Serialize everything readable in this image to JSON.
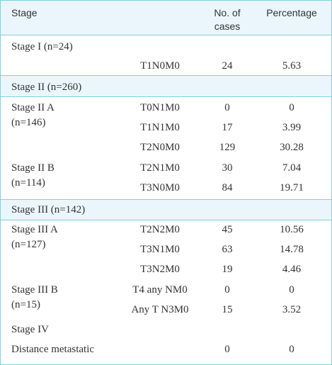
{
  "header": {
    "stage": "Stage",
    "cases_line1": "No. of",
    "cases_line2": "cases",
    "percentage": "Percentage"
  },
  "groups": [
    {
      "title": "Stage I (n=24)",
      "rows": [
        {
          "label": "",
          "tnm": "T1N0M0",
          "cases": "24",
          "pct": "5.63"
        }
      ]
    },
    {
      "title": "Stage II (n=260)",
      "rows": [
        {
          "label": "Stage II A",
          "tnm": "T0N1M0",
          "cases": "0",
          "pct": "0"
        },
        {
          "label": "(n=146)",
          "tnm": "T1N1M0",
          "cases": "17",
          "pct": "3.99"
        },
        {
          "label": "",
          "tnm": "T2N0M0",
          "cases": "129",
          "pct": "30.28"
        },
        {
          "label": "Stage II B",
          "tnm": "T2N1M0",
          "cases": "30",
          "pct": "7.04"
        },
        {
          "label": "(n=114)",
          "tnm": "T3N0M0",
          "cases": "84",
          "pct": "19.71"
        }
      ]
    },
    {
      "title": "Stage III (n=142)",
      "rows": [
        {
          "label": "Stage III A",
          "tnm": "T2N2M0",
          "cases": "45",
          "pct": "10.56"
        },
        {
          "label": "(n=127)",
          "tnm": "T3N1M0",
          "cases": "63",
          "pct": "14.78"
        },
        {
          "label": "",
          "tnm": "T3N2M0",
          "cases": "19",
          "pct": "4.46"
        },
        {
          "label": "Stage III B",
          "tnm": "T4 any NM0",
          "cases": "0",
          "pct": "0"
        },
        {
          "label": "(n=15)",
          "tnm": "Any T N3M0",
          "cases": "15",
          "pct": "3.52"
        },
        {
          "label": "Stage IV",
          "tnm": "",
          "cases": "",
          "pct": ""
        },
        {
          "label": "Distance metastatic",
          "tnm": "",
          "cases": "0",
          "pct": "0"
        }
      ]
    }
  ],
  "colors": {
    "border": "#7fd0e2",
    "band": "#eaf6fb",
    "text": "#333333"
  }
}
